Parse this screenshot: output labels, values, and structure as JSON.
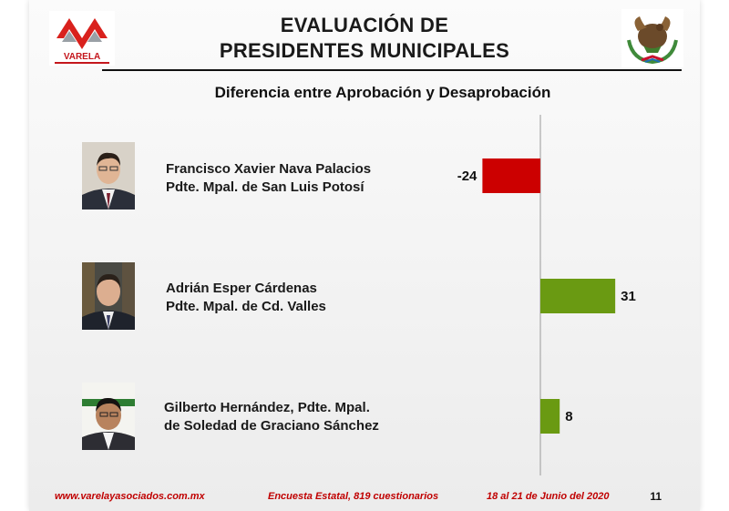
{
  "header": {
    "title_line1": "EVALUACIÓN DE",
    "title_line2": "PRESIDENTES MUNICIPALES",
    "logo_text": "VARELA"
  },
  "chart_data": {
    "type": "bar",
    "orientation": "horizontal",
    "title": "Diferencia entre Aprobación y Desaprobación",
    "categories": [
      "Francisco Xavier Nava Palacios / Pdte. Mpal. de San Luis Potosí",
      "Adrián Esper Cárdenas / Pdte. Mpal. de Cd. Valles",
      "Gilberto Hernández, Pdte. Mpal. de Soledad de Graciano Sánchez"
    ],
    "values": [
      -24,
      31,
      8
    ],
    "value_labels": [
      "-24",
      "31",
      "8"
    ],
    "colors": {
      "negative": "#cc0000",
      "positive": "#6a9a12"
    },
    "grid": false,
    "legend": "none"
  },
  "people": [
    {
      "name_line1": "Francisco Xavier Nava Palacios",
      "name_line2": "Pdte. Mpal. de San Luis Potosí"
    },
    {
      "name_line1": "Adrián Esper Cárdenas",
      "name_line2": "Pdte. Mpal. de Cd. Valles"
    },
    {
      "name_line1": "Gilberto Hernández, Pdte. Mpal.",
      "name_line2": "de Soledad de Graciano Sánchez"
    }
  ],
  "footer": {
    "website": "www.varelayasociados.com.mx",
    "survey": "Encuesta Estatal, 819 cuestionarios",
    "dates": "18 al 21 de Junio del 2020",
    "page": "11"
  }
}
